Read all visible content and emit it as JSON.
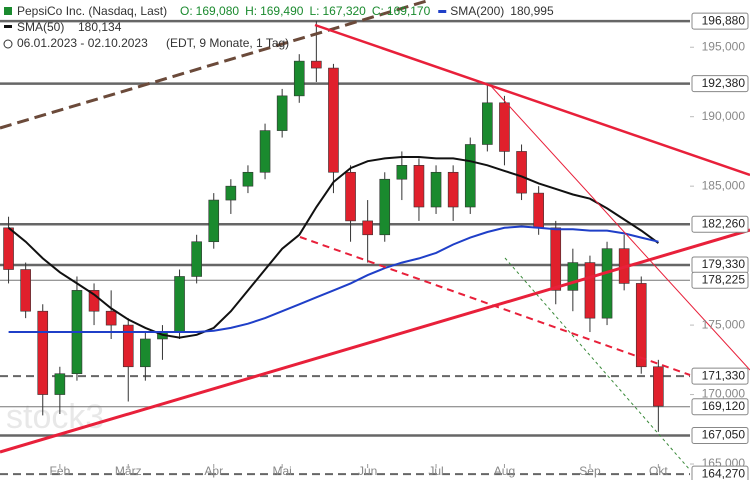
{
  "chart_data": {
    "type": "candlestick",
    "title": "PepsiCo Inc. (Nasdaq, Last)",
    "ohlc_header": [
      {
        "name": "O:",
        "value": {
          "value": 169.08,
          "label": "169,080"
        }
      },
      {
        "name": "H:",
        "value": {
          "value": 169.49,
          "label": "169,490"
        }
      },
      {
        "name": "L:",
        "value": {
          "value": 167.32,
          "label": "167,320"
        }
      },
      {
        "name": "C:",
        "value": {
          "value": 169.17,
          "label": "169,170"
        }
      }
    ],
    "date_range": "06.01.2023 - 02.10.2023",
    "period_note": "(EDT, 9 Monate, 1 Tag)",
    "watermark": "stock3",
    "categories": [
      null,
      null,
      null,
      "Feb",
      null,
      null,
      null,
      "März",
      null,
      null,
      null,
      null,
      "Apr",
      null,
      null,
      null,
      "Mai",
      null,
      null,
      null,
      null,
      "Jun",
      null,
      null,
      null,
      "Jul",
      null,
      null,
      null,
      "Aug",
      null,
      null,
      null,
      null,
      "Sep",
      null,
      null,
      null,
      "Okt"
    ],
    "open": [
      182,
      179,
      176,
      170,
      171.5,
      177.5,
      176,
      175,
      172,
      174,
      174.5,
      178.5,
      181,
      184,
      185,
      186,
      189,
      191.5,
      194,
      193.5,
      186,
      182.5,
      181.5,
      185.5,
      186.5,
      183.5,
      186,
      183.5,
      188,
      191,
      187.5,
      184.5,
      182,
      177.5,
      179.5,
      175.5,
      180.5,
      178,
      172
    ],
    "high": [
      182.8,
      179.5,
      176.5,
      172,
      178.5,
      178,
      177.5,
      175.5,
      174.5,
      175,
      179,
      181.5,
      184.5,
      185.5,
      186.5,
      189.5,
      192,
      194.5,
      196.88,
      193.8,
      186.5,
      184,
      186,
      187.5,
      187,
      186.5,
      186.5,
      188.5,
      192.38,
      191.5,
      188,
      185,
      182.5,
      180.5,
      180,
      181,
      181.5,
      178.5,
      172.5
    ],
    "low": [
      178,
      175.5,
      168.5,
      168.6,
      171,
      175,
      174,
      169.5,
      171,
      172.5,
      174,
      178,
      180.5,
      183,
      184.5,
      185.5,
      188.5,
      191,
      192.5,
      184.5,
      181,
      179.5,
      181,
      184,
      182.5,
      183,
      182.5,
      183,
      187.5,
      186.5,
      184,
      181.5,
      176.5,
      176,
      174.5,
      175,
      177.5,
      171.5,
      167.32
    ],
    "close": [
      179,
      176,
      170,
      171.5,
      177.5,
      176,
      175,
      172,
      174,
      174.5,
      178.5,
      181,
      184,
      185,
      186,
      189,
      191.5,
      194,
      193.5,
      186,
      182.5,
      181.5,
      185.5,
      186.5,
      183.5,
      186,
      183.5,
      188,
      191,
      187.5,
      184.5,
      182,
      177.5,
      179.5,
      175.5,
      180.5,
      178,
      172,
      169.17
    ],
    "up_color": "#1a8a2e",
    "down_color": "#e0202c",
    "series": [
      {
        "name": "SMA(50)",
        "last": {
          "value": 180.134,
          "label": "180,134"
        },
        "color": "#111111",
        "values": [
          182,
          181,
          179.8,
          178.8,
          178,
          177.2,
          176.2,
          175.4,
          174.8,
          174.3,
          174.1,
          174.3,
          174.8,
          176,
          177.5,
          179,
          180.5,
          181.5,
          183.5,
          185.3,
          186.3,
          186.8,
          187,
          187.1,
          187.1,
          187,
          187,
          186.8,
          186.5,
          186.1,
          185.7,
          185.2,
          184.8,
          184.4,
          184.1,
          183.4,
          182.6,
          181.8,
          180.9
        ]
      },
      {
        "name": "SMA(200)",
        "last": {
          "value": 180.995,
          "label": "180,995"
        },
        "color": "#1f3fc8",
        "values": [
          174.5,
          174.5,
          174.5,
          174.5,
          174.5,
          174.5,
          174.5,
          174.5,
          174.5,
          174.5,
          174.5,
          174.5,
          174.6,
          174.8,
          175.1,
          175.5,
          176,
          176.5,
          177,
          177.5,
          178,
          178.6,
          179.1,
          179.5,
          179.8,
          180.2,
          180.8,
          181.3,
          181.7,
          182,
          182.1,
          182,
          181.9,
          181.9,
          181.8,
          181.8,
          181.6,
          181.3,
          181.0
        ]
      }
    ],
    "ylim": [
      163.85,
      198.4
    ],
    "yticks": [
      {
        "value": 165,
        "label": "165,000"
      },
      {
        "value": 170,
        "label": "170,000"
      },
      {
        "value": 175,
        "label": "175,000"
      },
      {
        "value": 185,
        "label": "185,000"
      },
      {
        "value": 190,
        "label": "190,000"
      },
      {
        "value": 195,
        "label": "195,000"
      }
    ],
    "levels": [
      {
        "value": 196.88,
        "label": "196,880",
        "style": "solid"
      },
      {
        "value": 192.38,
        "label": "192,380",
        "style": "solid"
      },
      {
        "value": 182.26,
        "label": "182,260",
        "style": "solid"
      },
      {
        "value": 179.33,
        "label": "179,330",
        "style": "solid"
      },
      {
        "value": 178.225,
        "label": "178,225",
        "style": "thin"
      },
      {
        "value": 171.33,
        "label": "171,330",
        "style": "dashed"
      },
      {
        "value": 169.12,
        "label": "169,120",
        "style": "thin"
      },
      {
        "value": 167.05,
        "label": "167,050",
        "style": "solid"
      },
      {
        "value": 164.27,
        "label": "164,270",
        "style": "dashed"
      }
    ]
  }
}
